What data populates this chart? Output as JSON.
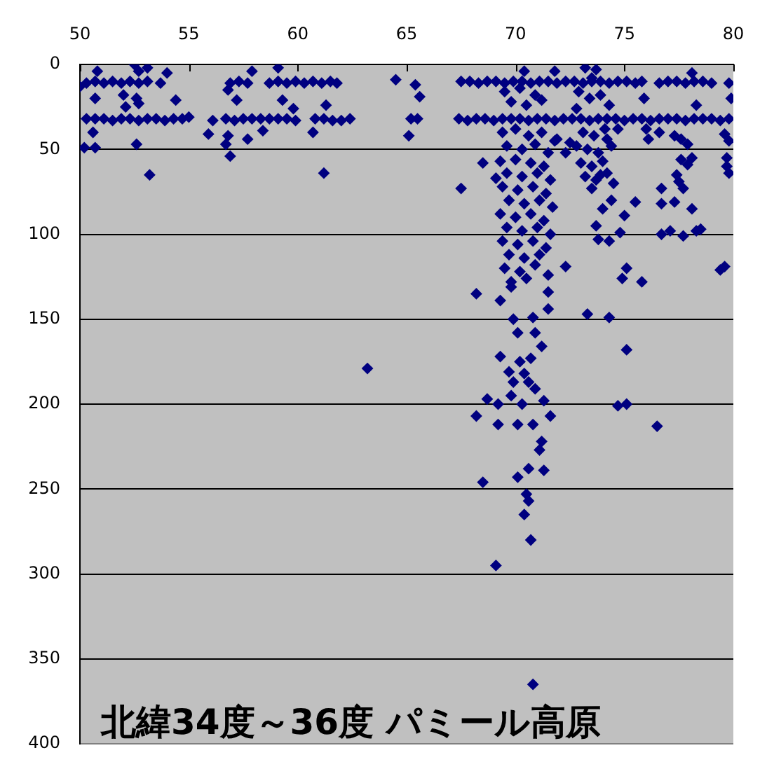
{
  "chart_data": {
    "type": "scatter",
    "title": "北緯34度～36度 パミール高原",
    "color": "#000080",
    "marker": "diamond",
    "grid": "y",
    "xlim": [
      50,
      80
    ],
    "xticks": [
      50,
      55,
      60,
      65,
      70,
      75,
      80
    ],
    "ylim": [
      400,
      0
    ],
    "yticks": [
      0,
      50,
      100,
      150,
      200,
      250,
      300,
      350,
      400
    ],
    "x": [
      52.5,
      53.1,
      52.7,
      50.8,
      54.0,
      57.9,
      59.1,
      50.3,
      50.7,
      51.1,
      51.5,
      51.9,
      52.3,
      52.7,
      53.1,
      53.7,
      56.9,
      57.3,
      57.7,
      58.7,
      59.1,
      59.5,
      59.9,
      60.3,
      60.7,
      61.1,
      61.5,
      61.8,
      50.0,
      52.0,
      50.7,
      52.6,
      54.4,
      56.8,
      57.2,
      59.3,
      61.3,
      52.1,
      59.8,
      52.7,
      50.3,
      50.7,
      51.1,
      51.5,
      51.9,
      52.3,
      52.7,
      53.1,
      53.5,
      53.9,
      54.3,
      54.7,
      55.0,
      56.1,
      56.7,
      57.1,
      57.5,
      57.9,
      58.3,
      58.7,
      59.1,
      59.5,
      59.9,
      60.8,
      61.2,
      61.6,
      62.0,
      62.4,
      50.6,
      55.9,
      56.8,
      57.7,
      58.4,
      60.7,
      52.6,
      56.7,
      50.2,
      50.7,
      56.9,
      53.2,
      61.2,
      63.2,
      64.5,
      65.4,
      65.6,
      65.2,
      65.5,
      65.1,
      67.5,
      67.9,
      68.3,
      68.7,
      69.1,
      69.5,
      69.9,
      70.3,
      70.7,
      71.1,
      71.5,
      71.9,
      72.3,
      72.7,
      73.1,
      73.5,
      73.9,
      74.3,
      74.7,
      75.1,
      75.5,
      75.8,
      76.6,
      77.0,
      77.4,
      77.8,
      78.2,
      78.6,
      79.0,
      79.8,
      70.4,
      71.8,
      73.2,
      78.1,
      67.4,
      67.8,
      68.2,
      68.6,
      69.0,
      69.4,
      69.8,
      70.2,
      70.6,
      71.0,
      71.4,
      71.8,
      72.2,
      72.6,
      73.0,
      73.4,
      73.8,
      74.2,
      74.6,
      75.0,
      75.4,
      75.8,
      76.2,
      76.6,
      77.0,
      77.4,
      77.8,
      78.2,
      78.6,
      79.0,
      79.4,
      79.8,
      75.9,
      78.3,
      79.9,
      68.5,
      67.5,
      69.1,
      69.5,
      70.2,
      70.9,
      69.8,
      70.5,
      71.2,
      69.4,
      70.0,
      70.6,
      71.2,
      71.8,
      69.6,
      70.3,
      70.9,
      71.5,
      69.3,
      70.0,
      70.7,
      71.3,
      69.6,
      70.3,
      71.0,
      71.6,
      69.4,
      70.1,
      70.8,
      71.4,
      69.7,
      70.4,
      71.1,
      71.7,
      69.3,
      70.0,
      70.7,
      71.3,
      69.6,
      70.3,
      71.0,
      71.6,
      69.4,
      70.1,
      70.8,
      71.4,
      69.7,
      70.4,
      71.1,
      69.5,
      70.2,
      70.9,
      71.5,
      69.8,
      70.5,
      73.7,
      73.5,
      72.9,
      73.4,
      73.9,
      74.3,
      72.8,
      73.1,
      73.6,
      74.1,
      72.8,
      73.3,
      73.8,
      74.4,
      73.0,
      73.5,
      74.0,
      73.2,
      73.7,
      74.2,
      73.5,
      74.5,
      72.5,
      72.3,
      71.9,
      74.7,
      76.0,
      76.1,
      74.2,
      76.6,
      77.3,
      77.6,
      77.9,
      77.6,
      77.9,
      78.1,
      79.6,
      79.8,
      79.7,
      79.7,
      79.8,
      76.7,
      76.7,
      77.3,
      77.7,
      78.1,
      76.7,
      77.1,
      77.7,
      78.3,
      78.5,
      77.5,
      77.4,
      79.6,
      79.4,
      73.9,
      73.7,
      73.8,
      74.3,
      74.8,
      74.0,
      74.4,
      75.0,
      75.5,
      72.3,
      73.3,
      74.3,
      74.9,
      75.1,
      75.8,
      75.1,
      74.7,
      75.1,
      76.5,
      68.2,
      69.3,
      69.8,
      71.5,
      71.5,
      69.9,
      70.8,
      70.1,
      70.9,
      71.2,
      69.3,
      70.2,
      70.7,
      69.7,
      70.4,
      69.9,
      70.6,
      70.9,
      68.7,
      69.2,
      69.8,
      70.3,
      71.3,
      68.2,
      69.2,
      70.1,
      70.8,
      71.6,
      71.2,
      71.1,
      70.6,
      70.1,
      71.3,
      68.5,
      70.5,
      70.6,
      70.4,
      70.7,
      69.1,
      70.8
    ],
    "values": [
      0,
      2,
      4,
      4,
      5,
      4,
      2,
      11,
      10,
      11,
      10,
      11,
      10,
      11,
      10,
      11,
      11,
      10,
      11,
      11,
      10,
      11,
      10,
      11,
      10,
      11,
      10,
      11,
      13,
      18,
      20,
      20,
      21,
      15,
      21,
      21,
      24,
      25,
      26,
      23,
      32,
      32,
      32,
      33,
      32,
      32,
      33,
      32,
      32,
      33,
      32,
      32,
      31,
      33,
      32,
      33,
      32,
      32,
      32,
      32,
      32,
      32,
      33,
      32,
      32,
      33,
      33,
      32,
      40,
      41,
      42,
      44,
      39,
      40,
      47,
      47,
      49,
      49,
      54,
      65,
      64,
      179,
      9,
      12,
      19,
      32,
      32,
      42,
      10,
      10,
      11,
      10,
      10,
      11,
      10,
      10,
      11,
      10,
      10,
      11,
      10,
      10,
      11,
      10,
      10,
      11,
      10,
      10,
      11,
      10,
      11,
      10,
      10,
      11,
      10,
      10,
      11,
      11,
      4,
      4,
      2,
      5,
      32,
      33,
      32,
      32,
      33,
      32,
      32,
      32,
      33,
      32,
      32,
      33,
      32,
      32,
      32,
      33,
      32,
      32,
      32,
      33,
      32,
      32,
      33,
      32,
      32,
      32,
      33,
      32,
      32,
      32,
      33,
      32,
      20,
      24,
      20,
      58,
      73,
      67,
      16,
      14,
      18,
      22,
      24,
      21,
      40,
      38,
      42,
      40,
      45,
      48,
      50,
      47,
      52,
      57,
      56,
      58,
      60,
      64,
      66,
      64,
      68,
      72,
      74,
      72,
      76,
      80,
      82,
      80,
      84,
      88,
      90,
      88,
      92,
      96,
      98,
      96,
      100,
      104,
      106,
      104,
      108,
      112,
      114,
      112,
      120,
      122,
      118,
      124,
      128,
      126,
      3,
      8,
      16,
      20,
      18,
      24,
      26,
      40,
      42,
      38,
      48,
      50,
      52,
      48,
      58,
      60,
      57,
      66,
      68,
      64,
      73,
      70,
      46,
      52,
      44,
      38,
      38,
      44,
      44,
      40,
      42,
      44,
      47,
      56,
      59,
      55,
      41,
      45,
      55,
      60,
      64,
      73,
      82,
      81,
      73,
      85,
      100,
      98,
      101,
      98,
      97,
      69,
      65,
      119,
      121,
      65,
      95,
      103,
      104,
      99,
      85,
      80,
      89,
      81,
      119,
      147,
      149,
      126,
      120,
      128,
      168,
      201,
      200,
      213,
      135,
      139,
      131,
      134,
      144,
      150,
      149,
      158,
      158,
      166,
      172,
      175,
      173,
      181,
      182,
      187,
      187,
      191,
      197,
      200,
      195,
      200,
      198,
      207,
      212,
      212,
      212,
      207,
      222,
      227,
      238,
      243,
      239,
      246,
      253,
      257,
      265,
      280,
      295,
      365
    ]
  }
}
